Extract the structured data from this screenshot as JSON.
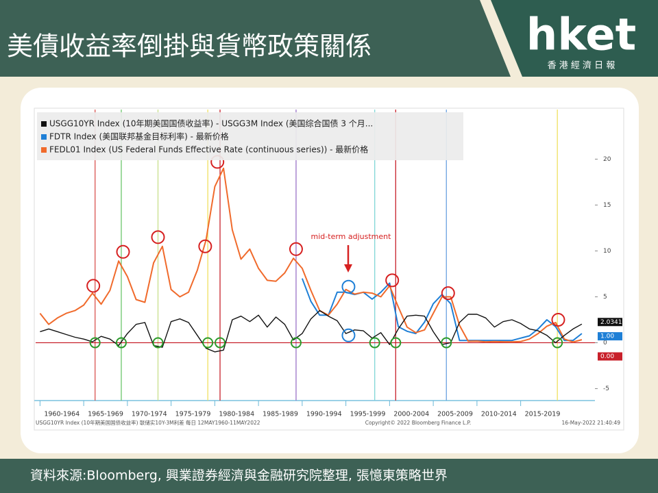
{
  "header": {
    "title": "美債收益率倒掛與貨幣政策關係",
    "logo": "hket",
    "logo_subtitle": "香 港 經 濟 日 報"
  },
  "chart_data": {
    "type": "line",
    "annotation": "mid-term adjustment",
    "footnote_left": "USGG10YR Index (10年期美国国债收益率) 联储实10Y-3M利差  每日 12MAY1960-11MAY2022",
    "footnote_center": "Copyright© 2022 Bloomberg Finance L.P.",
    "footnote_right": "16-May-2022 21:40:49",
    "x": [
      1960,
      1961,
      1962,
      1963,
      1964,
      1965,
      1966,
      1967,
      1968,
      1969,
      1970,
      1971,
      1972,
      1973,
      1974,
      1975,
      1976,
      1977,
      1978,
      1979,
      1980,
      1981,
      1982,
      1983,
      1984,
      1985,
      1986,
      1987,
      1988,
      1989,
      1990,
      1991,
      1992,
      1993,
      1994,
      1995,
      1996,
      1997,
      1998,
      1999,
      2000,
      2001,
      2002,
      2003,
      2004,
      2005,
      2006,
      2007,
      2008,
      2009,
      2010,
      2011,
      2012,
      2013,
      2014,
      2015,
      2016,
      2017,
      2018,
      2019,
      2020,
      2021,
      2022
    ],
    "xlim": [
      1959.5,
      2023.5
    ],
    "xticks": [
      {
        "value": 1960,
        "label": "1960-1964"
      },
      {
        "value": 1965,
        "label": "1965-1969"
      },
      {
        "value": 1970,
        "label": "1970-1974"
      },
      {
        "value": 1975,
        "label": "1975-1979"
      },
      {
        "value": 1980,
        "label": "1980-1984"
      },
      {
        "value": 1985,
        "label": "1985-1989"
      },
      {
        "value": 1990,
        "label": "1990-1994"
      },
      {
        "value": 1995,
        "label": "1995-1999"
      },
      {
        "value": 2000,
        "label": "2000-2004"
      },
      {
        "value": 2005,
        "label": "2005-2009"
      },
      {
        "value": 2010,
        "label": "2010-2014"
      },
      {
        "value": 2015,
        "label": "2015-2019"
      }
    ],
    "ylim": [
      -6.3,
      25.4
    ],
    "yticks": [
      -5,
      0,
      5,
      10,
      15,
      20
    ],
    "reference_line": {
      "value": 0,
      "label": "0.00",
      "color": "#c8202a"
    },
    "series": [
      {
        "name": "FDTR Index (美国联邦基金目标利率) - 最新价格",
        "color": "#1e7fd6",
        "last_label": "1.00",
        "values": [
          null,
          null,
          null,
          null,
          null,
          null,
          null,
          null,
          null,
          null,
          null,
          null,
          null,
          null,
          null,
          null,
          null,
          null,
          null,
          null,
          null,
          null,
          null,
          null,
          null,
          null,
          null,
          null,
          null,
          null,
          7,
          4.5,
          3,
          3,
          5.5,
          5.5,
          5.25,
          5.5,
          4.75,
          5.5,
          6.5,
          1.75,
          1.25,
          1,
          2.25,
          4.25,
          5.25,
          4.25,
          0.25,
          0.25,
          0.25,
          0.25,
          0.25,
          0.25,
          0.25,
          0.5,
          0.75,
          1.5,
          2.5,
          1.75,
          0.25,
          0.25,
          1
        ]
      },
      {
        "name": "FEDL01 Index (US Federal Funds Effective Rate (continuous series)) - 最新价格",
        "color": "#f06a2b",
        "values": [
          3.2,
          2.0,
          2.7,
          3.2,
          3.5,
          4.1,
          5.4,
          4.2,
          5.7,
          8.9,
          7.2,
          4.7,
          4.4,
          8.7,
          10.5,
          5.8,
          5.0,
          5.5,
          7.9,
          11.2,
          17,
          19,
          12.3,
          9.1,
          10.2,
          8.1,
          6.8,
          6.7,
          7.6,
          9.2,
          8.1,
          5.7,
          3.5,
          3.0,
          4.2,
          5.8,
          5.3,
          5.5,
          5.4,
          5.0,
          6.2,
          3.9,
          1.7,
          1.1,
          1.4,
          3.2,
          5.0,
          5.0,
          1.9,
          0.16,
          0.18,
          0.1,
          0.14,
          0.11,
          0.09,
          0.13,
          0.4,
          1.0,
          1.8,
          2.2,
          0.4,
          0.08,
          0.33
        ]
      },
      {
        "name": "USGG10YR Index (10年期美国国债收益率) - USGG3M Index (美国综合国债 3 个月...",
        "color": "#111111",
        "last_label": "2.0341",
        "values": [
          1.2,
          1.5,
          1.2,
          0.9,
          0.6,
          0.4,
          0.1,
          0.7,
          0.4,
          -0.3,
          1.0,
          2.0,
          2.2,
          -0.3,
          -0.5,
          2.3,
          2.6,
          2.2,
          0.8,
          -0.6,
          -1.0,
          -0.8,
          2.5,
          2.9,
          2.3,
          3.0,
          1.7,
          2.8,
          2.0,
          0.3,
          1.0,
          2.6,
          3.5,
          2.9,
          2.4,
          1.0,
          1.4,
          1.3,
          0.5,
          1.1,
          -0.2,
          1.5,
          2.9,
          3.0,
          2.9,
          1.2,
          -0.2,
          0.0,
          2.2,
          3.1,
          3.1,
          2.7,
          1.7,
          2.3,
          2.5,
          2.1,
          1.5,
          1.3,
          0.8,
          0.0,
          0.8,
          1.5,
          2.0341
        ]
      }
    ],
    "vertical_lines": [
      {
        "x": 1966.3,
        "color": "#d9534f"
      },
      {
        "x": 1969.3,
        "color": "#6cc46c"
      },
      {
        "x": 1973.5,
        "color": "#c8e08a"
      },
      {
        "x": 1979.2,
        "color": "#f0e060"
      },
      {
        "x": 1980.6,
        "color": "#c8202a"
      },
      {
        "x": 1989.3,
        "color": "#9b72c8"
      },
      {
        "x": 1998.3,
        "color": "#7fd6d6"
      },
      {
        "x": 2000.7,
        "color": "#c8202a"
      },
      {
        "x": 2006.5,
        "color": "#6aa0e0"
      },
      {
        "x": 2019.2,
        "color": "#f0e060"
      }
    ],
    "highlights": [
      {
        "x": 1966.1,
        "y": 6.2,
        "color": "#d62020"
      },
      {
        "x": 1969.5,
        "y": 9.9,
        "color": "#d62020"
      },
      {
        "x": 1973.5,
        "y": 11.5,
        "color": "#d62020"
      },
      {
        "x": 1978.9,
        "y": 10.5,
        "color": "#d62020"
      },
      {
        "x": 1980.3,
        "y": 19.7,
        "color": "#d62020"
      },
      {
        "x": 1989.3,
        "y": 10.2,
        "color": "#d62020"
      },
      {
        "x": 2000.3,
        "y": 6.8,
        "color": "#d62020"
      },
      {
        "x": 2006.7,
        "y": 5.4,
        "color": "#d62020"
      },
      {
        "x": 2019.3,
        "y": 2.5,
        "color": "#d62020"
      },
      {
        "x": 1995.3,
        "y": 6.1,
        "color": "#1e7fd6"
      },
      {
        "x": 1995.3,
        "y": 0.8,
        "color": "#1e7fd6"
      },
      {
        "x": 1966.3,
        "y": 0,
        "color": "#2a9a2a"
      },
      {
        "x": 1969.3,
        "y": 0,
        "color": "#2a9a2a"
      },
      {
        "x": 1973.5,
        "y": 0,
        "color": "#2a9a2a"
      },
      {
        "x": 1979.2,
        "y": 0,
        "color": "#2a9a2a"
      },
      {
        "x": 1980.6,
        "y": 0,
        "color": "#2a9a2a"
      },
      {
        "x": 1989.3,
        "y": 0,
        "color": "#2a9a2a"
      },
      {
        "x": 1998.3,
        "y": 0,
        "color": "#2a9a2a"
      },
      {
        "x": 2000.7,
        "y": 0,
        "color": "#2a9a2a"
      },
      {
        "x": 2006.5,
        "y": 0,
        "color": "#2a9a2a"
      },
      {
        "x": 2019.2,
        "y": 0,
        "color": "#2a9a2a"
      }
    ]
  },
  "footer": {
    "source": "資料來源:Bloomberg, 興業證券經濟與金融研究院整理, 張憶東策略世界"
  }
}
